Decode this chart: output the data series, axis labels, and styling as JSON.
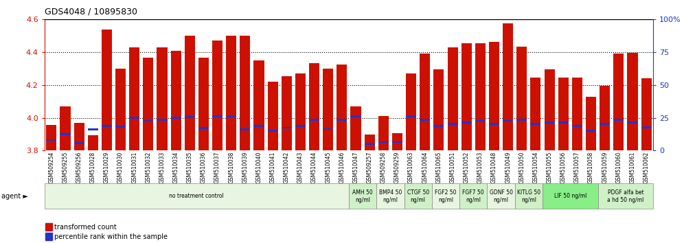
{
  "title": "GDS4048 / 10895830",
  "samples": [
    "GSM509254",
    "GSM509255",
    "GSM509256",
    "GSM510028",
    "GSM510029",
    "GSM510030",
    "GSM510031",
    "GSM510032",
    "GSM510033",
    "GSM510034",
    "GSM510035",
    "GSM510036",
    "GSM510037",
    "GSM510038",
    "GSM510039",
    "GSM510040",
    "GSM510041",
    "GSM510042",
    "GSM510043",
    "GSM510044",
    "GSM510045",
    "GSM510046",
    "GSM510047",
    "GSM509257",
    "GSM509258",
    "GSM509259",
    "GSM510063",
    "GSM510064",
    "GSM510065",
    "GSM510051",
    "GSM510052",
    "GSM510053",
    "GSM510048",
    "GSM510049",
    "GSM510050",
    "GSM510054",
    "GSM510055",
    "GSM510056",
    "GSM510057",
    "GSM510058",
    "GSM510059",
    "GSM510060",
    "GSM510061",
    "GSM510062"
  ],
  "red_values": [
    3.955,
    4.07,
    3.97,
    3.895,
    4.54,
    4.3,
    4.43,
    4.365,
    4.43,
    4.41,
    4.5,
    4.365,
    4.47,
    4.5,
    4.5,
    4.35,
    4.22,
    4.255,
    4.27,
    4.335,
    4.3,
    4.325,
    4.07,
    3.9,
    4.01,
    3.905,
    4.27,
    4.39,
    4.295,
    4.43,
    4.455,
    4.455,
    4.465,
    4.575,
    4.435,
    4.245,
    4.295,
    4.245,
    4.245,
    4.13,
    4.195,
    4.39,
    4.395,
    4.24
  ],
  "blue_values": [
    3.865,
    3.9,
    3.845,
    3.93,
    3.95,
    3.948,
    4.002,
    3.982,
    3.99,
    4.0,
    4.005,
    3.938,
    4.01,
    4.01,
    3.93,
    3.95,
    3.922,
    3.94,
    3.95,
    3.99,
    3.932,
    3.99,
    4.01,
    3.842,
    3.852,
    3.852,
    4.01,
    3.99,
    3.95,
    3.962,
    3.972,
    3.982,
    3.962,
    3.982,
    3.99,
    3.962,
    3.972,
    3.972,
    3.952,
    3.922,
    3.962,
    3.99,
    3.972,
    3.942
  ],
  "ylim_left": [
    3.8,
    4.6
  ],
  "ylim_right": [
    0,
    100
  ],
  "yticks_left": [
    3.8,
    4.0,
    4.2,
    4.4,
    4.6
  ],
  "yticks_right": [
    0,
    25,
    50,
    75,
    100
  ],
  "bar_color": "#cc1100",
  "blue_color": "#2233cc",
  "bg_color": "#ffffff",
  "agent_groups": [
    {
      "label": "no treatment control",
      "start": 0,
      "end": 22,
      "color": "#e8f5e0"
    },
    {
      "label": "AMH 50\nng/ml",
      "start": 22,
      "end": 24,
      "color": "#d0f0c8"
    },
    {
      "label": "BMP4 50\nng/ml",
      "start": 24,
      "end": 26,
      "color": "#e8f5e0"
    },
    {
      "label": "CTGF 50\nng/ml",
      "start": 26,
      "end": 28,
      "color": "#d0f0c8"
    },
    {
      "label": "FGF2 50\nng/ml",
      "start": 28,
      "end": 30,
      "color": "#e8f5e0"
    },
    {
      "label": "FGF7 50\nng/ml",
      "start": 30,
      "end": 32,
      "color": "#d0f0c8"
    },
    {
      "label": "GDNF 50\nng/ml",
      "start": 32,
      "end": 34,
      "color": "#e8f5e0"
    },
    {
      "label": "KITLG 50\nng/ml",
      "start": 34,
      "end": 36,
      "color": "#d0f0c8"
    },
    {
      "label": "LIF 50 ng/ml",
      "start": 36,
      "end": 40,
      "color": "#88ee88"
    },
    {
      "label": "PDGF alfa bet\na hd 50 ng/ml",
      "start": 40,
      "end": 44,
      "color": "#d0f0c8"
    }
  ],
  "legend": [
    {
      "label": "transformed count",
      "color": "#cc1100"
    },
    {
      "label": "percentile rank within the sample",
      "color": "#2233cc"
    }
  ]
}
